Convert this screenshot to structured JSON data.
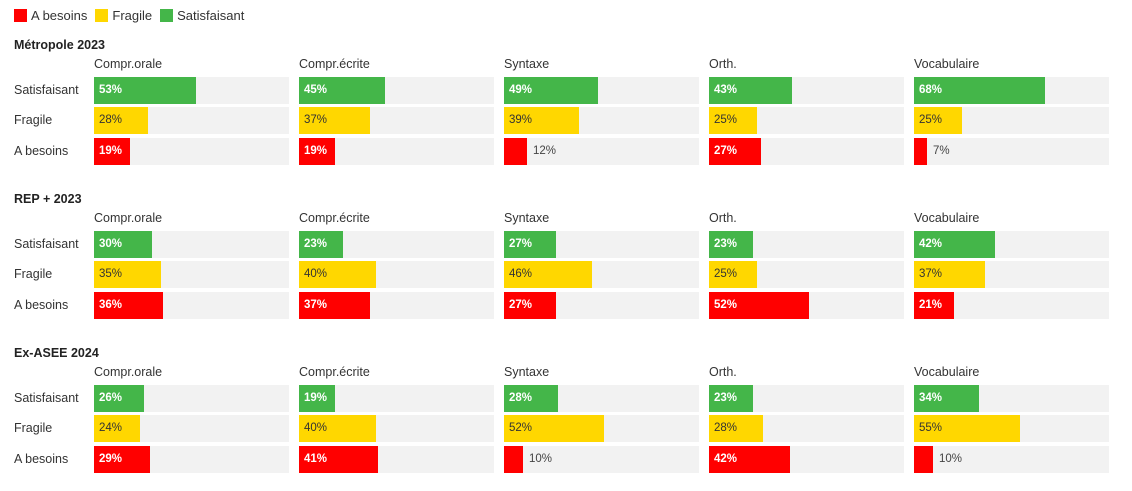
{
  "legend": [
    {
      "label": "A besoins",
      "color": "#ff0000"
    },
    {
      "label": "Fragile",
      "color": "#ffd700"
    },
    {
      "label": "Satisfaisant",
      "color": "#44b649"
    }
  ],
  "chart_data": [
    {
      "type": "bar",
      "title": "Métropole 2023",
      "categories": [
        "Compr.orale",
        "Compr.écrite",
        "Syntaxe",
        "Orth.",
        "Vocabulaire"
      ],
      "series": [
        {
          "name": "Satisfaisant",
          "values": [
            53,
            45,
            49,
            43,
            68
          ]
        },
        {
          "name": "Fragile",
          "values": [
            28,
            37,
            39,
            25,
            25
          ]
        },
        {
          "name": "A besoins",
          "values": [
            19,
            19,
            12,
            27,
            7
          ]
        }
      ]
    },
    {
      "type": "bar",
      "title": "REP + 2023",
      "categories": [
        "Compr.orale",
        "Compr.écrite",
        "Syntaxe",
        "Orth.",
        "Vocabulaire"
      ],
      "series": [
        {
          "name": "Satisfaisant",
          "values": [
            30,
            23,
            27,
            23,
            42
          ]
        },
        {
          "name": "Fragile",
          "values": [
            35,
            40,
            46,
            25,
            37
          ]
        },
        {
          "name": "A besoins",
          "values": [
            36,
            37,
            27,
            52,
            21
          ]
        }
      ]
    },
    {
      "type": "bar",
      "title": "Ex-ASEE 2024",
      "categories": [
        "Compr.orale",
        "Compr.écrite",
        "Syntaxe",
        "Orth.",
        "Vocabulaire"
      ],
      "series": [
        {
          "name": "Satisfaisant",
          "values": [
            26,
            19,
            28,
            23,
            34
          ]
        },
        {
          "name": "Fragile",
          "values": [
            24,
            40,
            52,
            28,
            55
          ]
        },
        {
          "name": "A besoins",
          "values": [
            29,
            41,
            10,
            42,
            10
          ]
        }
      ]
    }
  ]
}
